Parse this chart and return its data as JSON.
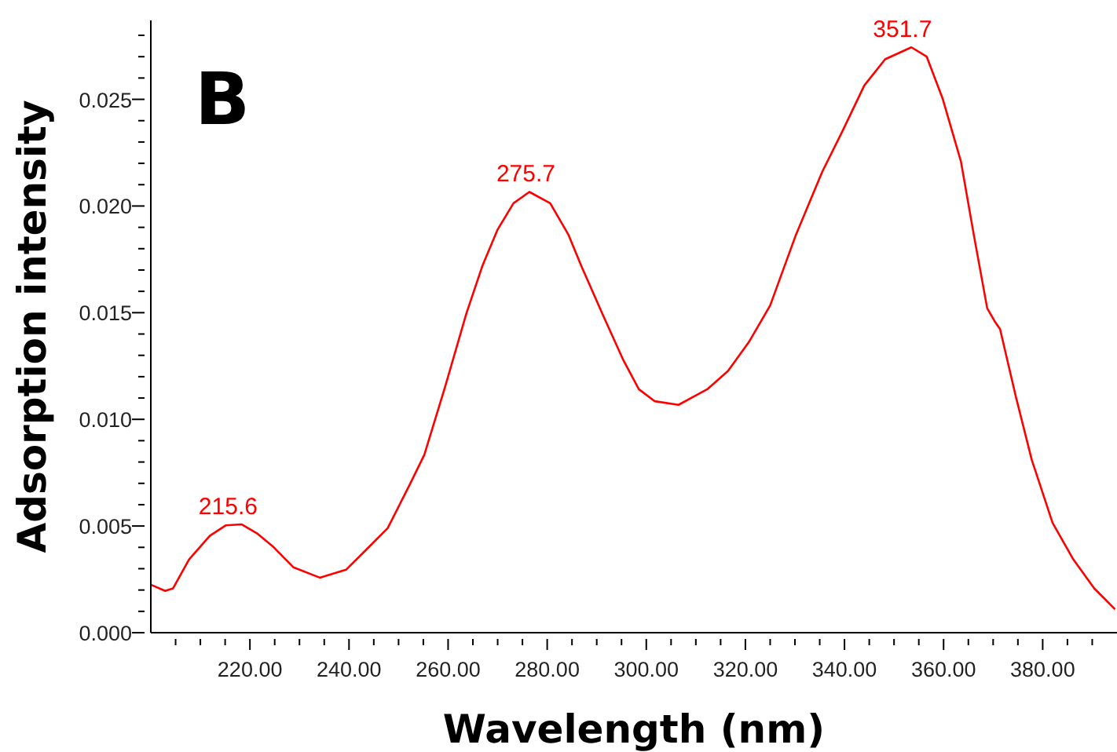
{
  "chart_data": {
    "type": "line",
    "xlabel": "Wavelength (nm)",
    "ylabel": "Adsorption intensity",
    "annotations": [
      "B",
      {
        "text": "215.6",
        "x": 215.6,
        "y": 0.0051
      },
      {
        "text": "275.7",
        "x": 275.7,
        "y": 0.0207
      },
      {
        "text": "351.7",
        "x": 351.7,
        "y": 0.0275
      }
    ],
    "x": [
      200,
      202.9,
      204.5,
      207.7,
      211.9,
      215.1,
      218.3,
      221.4,
      224.6,
      228.8,
      234.1,
      239.4,
      243.6,
      247.8,
      252.1,
      255.2,
      259.4,
      263.7,
      266.9,
      270,
      273.2,
      276.4,
      280.6,
      284.3,
      286.9,
      291.1,
      295.4,
      298.5,
      301.7,
      306.5,
      312.3,
      316.5,
      320.7,
      325,
      330.2,
      335.5,
      339.7,
      344,
      348.2,
      353.5,
      356.6,
      359.8,
      363.5,
      366.1,
      368.8,
      370.3,
      371.4,
      374.6,
      377.8,
      382,
      386.2,
      390.4,
      394.6
    ],
    "values": [
      0.00225,
      0.00196,
      0.00208,
      0.00343,
      0.00454,
      0.00503,
      0.00508,
      0.00466,
      0.00405,
      0.00306,
      0.00258,
      0.00295,
      0.00392,
      0.0049,
      0.00687,
      0.00834,
      0.01153,
      0.01497,
      0.01718,
      0.0189,
      0.02013,
      0.02066,
      0.02013,
      0.01865,
      0.01718,
      0.01497,
      0.01276,
      0.01141,
      0.01085,
      0.01068,
      0.01141,
      0.01227,
      0.01362,
      0.01534,
      0.01865,
      0.0216,
      0.02356,
      0.02565,
      0.02688,
      0.02744,
      0.027,
      0.02504,
      0.02209,
      0.01865,
      0.01521,
      0.0146,
      0.01423,
      0.01105,
      0.0081,
      0.00515,
      0.00343,
      0.00208,
      0.0011
    ],
    "color": "#ff0000",
    "marker": "none",
    "line_style": "solid",
    "grid": false,
    "legend": false,
    "xlim": [
      200,
      395
    ],
    "xticks": [
      {
        "value": 205,
        "label": null
      },
      {
        "value": 210,
        "label": null
      },
      {
        "value": 215,
        "label": null
      },
      {
        "value": 220,
        "label": "220.00"
      },
      {
        "value": 225,
        "label": null
      },
      {
        "value": 230,
        "label": null
      },
      {
        "value": 235,
        "label": null
      },
      {
        "value": 240,
        "label": "240.00"
      },
      {
        "value": 245,
        "label": null
      },
      {
        "value": 250,
        "label": null
      },
      {
        "value": 255,
        "label": null
      },
      {
        "value": 260,
        "label": "260.00"
      },
      {
        "value": 265,
        "label": null
      },
      {
        "value": 270,
        "label": null
      },
      {
        "value": 275,
        "label": null
      },
      {
        "value": 280,
        "label": "280.00"
      },
      {
        "value": 285,
        "label": null
      },
      {
        "value": 290,
        "label": null
      },
      {
        "value": 295,
        "label": null
      },
      {
        "value": 300,
        "label": "300.00"
      },
      {
        "value": 305,
        "label": null
      },
      {
        "value": 310,
        "label": null
      },
      {
        "value": 315,
        "label": null
      },
      {
        "value": 320,
        "label": "320.00"
      },
      {
        "value": 325,
        "label": null
      },
      {
        "value": 330,
        "label": null
      },
      {
        "value": 335,
        "label": null
      },
      {
        "value": 340,
        "label": "340.00"
      },
      {
        "value": 345,
        "label": null
      },
      {
        "value": 350,
        "label": null
      },
      {
        "value": 355,
        "label": null
      },
      {
        "value": 360,
        "label": "360.00"
      },
      {
        "value": 365,
        "label": null
      },
      {
        "value": 370,
        "label": null
      },
      {
        "value": 375,
        "label": null
      },
      {
        "value": 380,
        "label": "380.00"
      },
      {
        "value": 385,
        "label": null
      },
      {
        "value": 390,
        "label": null
      }
    ],
    "ylim": [
      0,
      0.0287
    ],
    "yticks": [
      {
        "value": 0,
        "label": "0.000"
      },
      {
        "value": 0.001,
        "label": null
      },
      {
        "value": 0.002,
        "label": null
      },
      {
        "value": 0.003,
        "label": null
      },
      {
        "value": 0.004,
        "label": null
      },
      {
        "value": 0.005,
        "label": "0.005"
      },
      {
        "value": 0.006,
        "label": null
      },
      {
        "value": 0.007,
        "label": null
      },
      {
        "value": 0.008,
        "label": null
      },
      {
        "value": 0.009,
        "label": null
      },
      {
        "value": 0.01,
        "label": "0.010"
      },
      {
        "value": 0.011,
        "label": null
      },
      {
        "value": 0.012,
        "label": null
      },
      {
        "value": 0.013,
        "label": null
      },
      {
        "value": 0.014,
        "label": null
      },
      {
        "value": 0.015,
        "label": "0.015"
      },
      {
        "value": 0.016,
        "label": null
      },
      {
        "value": 0.017,
        "label": null
      },
      {
        "value": 0.018,
        "label": null
      },
      {
        "value": 0.019,
        "label": null
      },
      {
        "value": 0.02,
        "label": "0.020"
      },
      {
        "value": 0.021,
        "label": null
      },
      {
        "value": 0.022,
        "label": null
      },
      {
        "value": 0.023,
        "label": null
      },
      {
        "value": 0.024,
        "label": null
      },
      {
        "value": 0.025,
        "label": "0.025"
      },
      {
        "value": 0.026,
        "label": null
      },
      {
        "value": 0.027,
        "label": null
      },
      {
        "value": 0.028,
        "label": null
      }
    ]
  }
}
